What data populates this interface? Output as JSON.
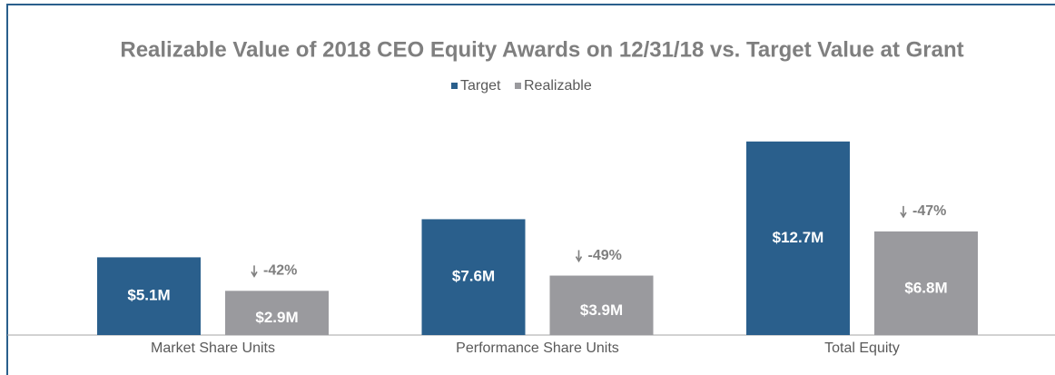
{
  "chart_data": {
    "type": "bar",
    "title": "Realizable Value of 2018 CEO Equity Awards on 12/31/18 vs. Target Value at Grant",
    "categories": [
      "Market Share Units",
      "Performance Share Units",
      "Total Equity"
    ],
    "series": [
      {
        "name": "Target",
        "color": "#2a5f8c",
        "values": [
          5.1,
          7.6,
          12.7
        ],
        "value_labels": [
          "$5.1M",
          "$7.6M",
          "$12.7M"
        ]
      },
      {
        "name": "Realizable",
        "color": "#9a9a9e",
        "values": [
          2.9,
          3.9,
          6.8
        ],
        "value_labels": [
          "$2.9M",
          "$3.9M",
          "$6.8M"
        ],
        "changes": [
          -42,
          -49,
          -47
        ],
        "change_labels": [
          "-42%",
          "-49%",
          "-47%"
        ]
      }
    ],
    "ylim": [
      0,
      14
    ]
  }
}
